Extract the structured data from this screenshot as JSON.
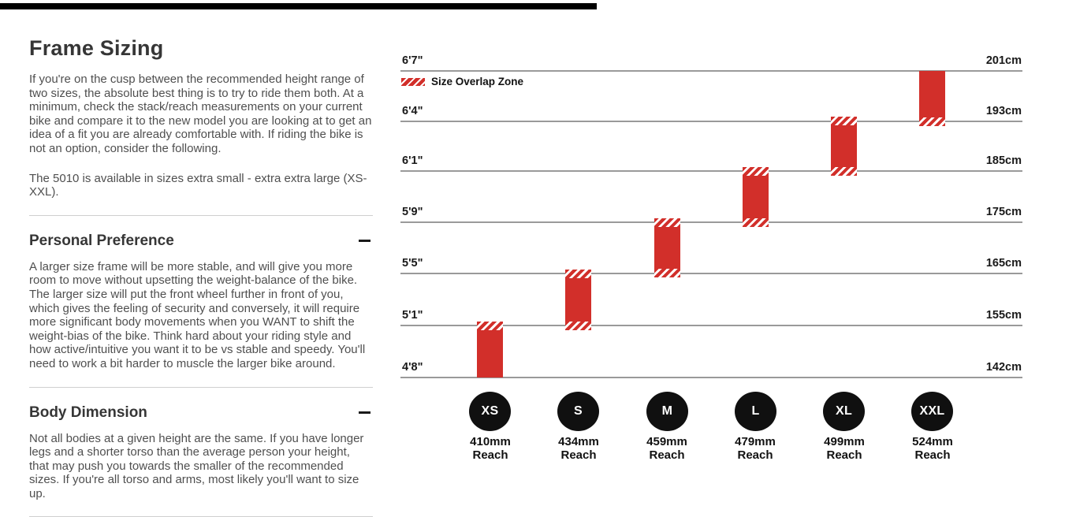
{
  "colors": {
    "accent_red": "#d22f2a",
    "badge_black": "#101010",
    "gridline_gray": "#9a9a9a"
  },
  "article": {
    "title": "Frame Sizing",
    "intro": "If you're on the cusp between the recommended height range of two sizes, the absolute best thing is to try to ride them both. At a minimum, check the stack/reach measurements on your current bike and compare it to the new model you are looking at to get an idea of a fit you are already comfortable with. If riding the bike is not an option, consider the following.",
    "availability": "The 5010 is available in sizes extra small - extra extra large (XS-XXL).",
    "sections": [
      {
        "heading": "Personal Preference",
        "collapse_icon": "minus-icon",
        "body": "A larger size frame will be more stable, and will give you more room to move without upsetting the weight-balance of the bike. The larger size will put the front wheel further in front of you, which gives the feeling of security and conversely, it will require more significant body movements when you WANT to shift the weight-bias of the bike. Think hard about your riding style and how active/intuitive you want it to be vs stable and speedy. You'll need to work a bit harder to muscle the larger bike around."
      },
      {
        "heading": "Body Dimension",
        "collapse_icon": "minus-icon",
        "body": "Not all bodies at a given height are the same. If you have longer legs and a shorter torso than the average person your height, that may push you towards the smaller of the recommended sizes. If you're all torso and arms, most likely you'll want to size up."
      }
    ]
  },
  "chart_data": {
    "type": "bar",
    "title": "",
    "legend_label": "Size Overlap Zone",
    "legend_position": "top-left",
    "grid": "horizontal",
    "ylim_cm": [
      142,
      201
    ],
    "rows": [
      {
        "ft": "6'7\"",
        "cm": "201cm"
      },
      {
        "ft": "6'4\"",
        "cm": "193cm"
      },
      {
        "ft": "6'1\"",
        "cm": "185cm"
      },
      {
        "ft": "5'9\"",
        "cm": "175cm"
      },
      {
        "ft": "5'5\"",
        "cm": "165cm"
      },
      {
        "ft": "5'1\"",
        "cm": "155cm"
      },
      {
        "ft": "4'8\"",
        "cm": "142cm"
      }
    ],
    "reach_word": "Reach",
    "sizes": [
      {
        "label": "XS",
        "reach": "410mm",
        "height_min_cm": 142,
        "height_max_cm": 155,
        "overlap_top": true,
        "overlap_bottom": false
      },
      {
        "label": "S",
        "reach": "434mm",
        "height_min_cm": 155,
        "height_max_cm": 165,
        "overlap_top": true,
        "overlap_bottom": true
      },
      {
        "label": "M",
        "reach": "459mm",
        "height_min_cm": 165,
        "height_max_cm": 175,
        "overlap_top": true,
        "overlap_bottom": true
      },
      {
        "label": "L",
        "reach": "479mm",
        "height_min_cm": 175,
        "height_max_cm": 185,
        "overlap_top": true,
        "overlap_bottom": true
      },
      {
        "label": "XL",
        "reach": "499mm",
        "height_min_cm": 185,
        "height_max_cm": 193,
        "overlap_top": true,
        "overlap_bottom": true
      },
      {
        "label": "XXL",
        "reach": "524mm",
        "height_min_cm": 193,
        "height_max_cm": 201,
        "overlap_top": false,
        "overlap_bottom": true
      }
    ]
  }
}
